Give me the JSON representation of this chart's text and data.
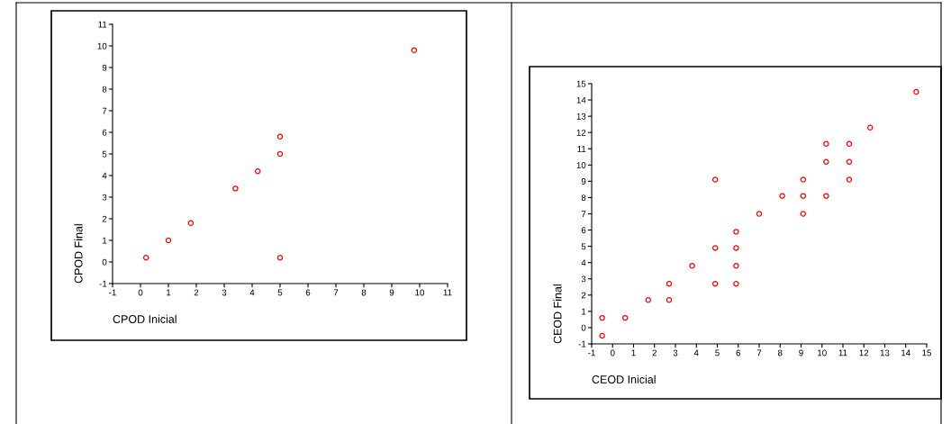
{
  "chart_data": [
    {
      "type": "scatter",
      "xlabel": "CPOD Inicial",
      "ylabel": "CPOD Final",
      "xlim": [
        -1,
        11
      ],
      "ylim": [
        -1,
        11
      ],
      "xticks": [
        -1,
        0,
        1,
        2,
        3,
        4,
        5,
        6,
        7,
        8,
        9,
        10,
        11
      ],
      "yticks": [
        -1,
        0,
        1,
        2,
        3,
        4,
        5,
        6,
        7,
        8,
        9,
        10,
        11
      ],
      "grid": false,
      "marker": "circle",
      "series": [
        {
          "color": "#ff0000",
          "x": [
            0.2,
            1,
            1.8,
            3.4,
            4.2,
            5,
            5,
            5,
            9.8
          ],
          "values": [
            0.2,
            1,
            1.8,
            3.4,
            4.2,
            5.8,
            5,
            0.2,
            9.8
          ]
        }
      ]
    },
    {
      "type": "scatter",
      "xlabel": "CEOD Inicial",
      "ylabel": "CEOD Final",
      "xlim": [
        -1,
        15
      ],
      "ylim": [
        -1,
        15
      ],
      "xticks": [
        -1,
        0,
        1,
        2,
        3,
        4,
        5,
        6,
        7,
        8,
        9,
        10,
        11,
        12,
        13,
        14,
        15
      ],
      "yticks": [
        -1,
        0,
        1,
        2,
        3,
        4,
        5,
        6,
        7,
        8,
        9,
        10,
        11,
        12,
        13,
        14,
        15
      ],
      "grid": false,
      "marker": "circle",
      "series": [
        {
          "color": "#ff0000",
          "x": [
            -0.5,
            -0.5,
            0.6,
            1.7,
            2.7,
            2.7,
            3.8,
            4.9,
            4.9,
            4.9,
            5.9,
            5.9,
            5.9,
            5.9,
            7,
            8.1,
            9.1,
            9.1,
            9.1,
            10.2,
            10.2,
            10.2,
            11.3,
            11.3,
            11.3,
            12.3,
            14.5
          ],
          "values": [
            -0.5,
            0.6,
            0.6,
            1.7,
            1.7,
            2.7,
            3.8,
            4.9,
            2.7,
            9.1,
            5.9,
            4.9,
            3.8,
            2.7,
            7,
            8.1,
            9.1,
            8.1,
            7,
            11.3,
            10.2,
            8.1,
            11.3,
            10.2,
            9.1,
            12.3,
            14.5
          ]
        }
      ]
    }
  ]
}
